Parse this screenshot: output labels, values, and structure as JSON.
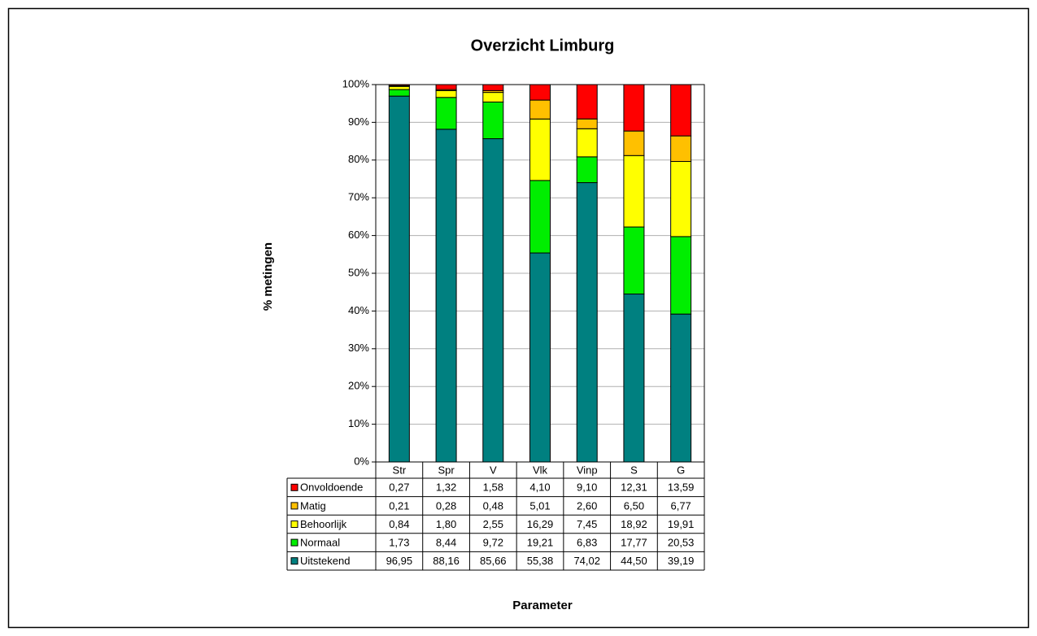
{
  "chart_data": {
    "type": "stacked_bar",
    "title": "Overzicht Limburg",
    "y_label": "% metingen",
    "x_label": "Parameter",
    "categories": [
      "Str",
      "Spr",
      "V",
      "Vlk",
      "Vinp",
      "S",
      "G"
    ],
    "series": [
      {
        "name": "Onvoldoende",
        "color": "#ff0000",
        "values": [
          0.27,
          1.32,
          1.58,
          4.1,
          9.1,
          12.31,
          13.59
        ],
        "value_labels": [
          "0,27",
          "1,32",
          "1,58",
          "4,10",
          "9,10",
          "12,31",
          "13,59"
        ]
      },
      {
        "name": "Matig",
        "color": "#ffc000",
        "values": [
          0.21,
          0.28,
          0.48,
          5.01,
          2.6,
          6.5,
          6.77
        ],
        "value_labels": [
          "0,21",
          "0,28",
          "0,48",
          "5,01",
          "2,60",
          "6,50",
          "6,77"
        ]
      },
      {
        "name": "Behoorlijk",
        "color": "#ffff00",
        "values": [
          0.84,
          1.8,
          2.55,
          16.29,
          7.45,
          18.92,
          19.91
        ],
        "value_labels": [
          "0,84",
          "1,80",
          "2,55",
          "16,29",
          "7,45",
          "18,92",
          "19,91"
        ]
      },
      {
        "name": "Normaal",
        "color": "#00ee00",
        "values": [
          1.73,
          8.44,
          9.72,
          19.21,
          6.83,
          17.77,
          20.53
        ],
        "value_labels": [
          "1,73",
          "8,44",
          "9,72",
          "19,21",
          "6,83",
          "17,77",
          "20,53"
        ]
      },
      {
        "name": "Uitstekend",
        "color": "#008080",
        "values": [
          96.95,
          88.16,
          85.66,
          55.38,
          74.02,
          44.5,
          39.19
        ],
        "value_labels": [
          "96,95",
          "88,16",
          "85,66",
          "55,38",
          "74,02",
          "44,50",
          "39,19"
        ]
      }
    ],
    "ylim": [
      0,
      100
    ],
    "yticks": [
      {
        "value": 0,
        "label": "0%"
      },
      {
        "value": 10,
        "label": "10%"
      },
      {
        "value": 20,
        "label": "20%"
      },
      {
        "value": 30,
        "label": "30%"
      },
      {
        "value": 40,
        "label": "40%"
      },
      {
        "value": 50,
        "label": "50%"
      },
      {
        "value": 60,
        "label": "60%"
      },
      {
        "value": 70,
        "label": "70%"
      },
      {
        "value": 80,
        "label": "80%"
      },
      {
        "value": 90,
        "label": "90%"
      },
      {
        "value": 100,
        "label": "100%"
      }
    ],
    "grid": true
  }
}
